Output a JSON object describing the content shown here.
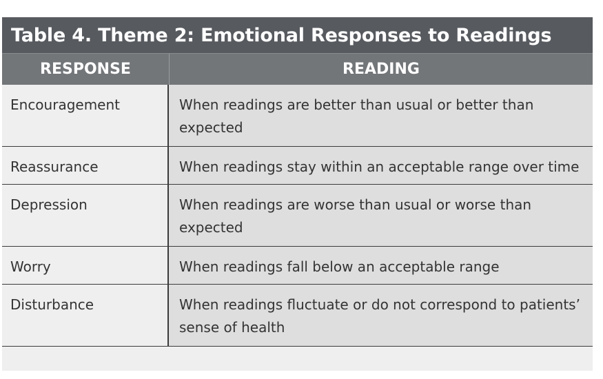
{
  "table": {
    "title": "Table 4. Theme 2: Emotional Responses to Readings",
    "headers": {
      "response": "RESPONSE",
      "reading": "READING"
    },
    "rows": [
      {
        "response": "Encouragement",
        "reading": "When readings are better than usual or better than expected"
      },
      {
        "response": "Reassurance",
        "reading": "When readings stay within an acceptable range over time"
      },
      {
        "response": "Depression",
        "reading": "When readings are worse than usual or worse than expected"
      },
      {
        "response": "Worry",
        "reading": "When readings fall below an acceptable range"
      },
      {
        "response": "Disturbance",
        "reading": "When readings fluctuate or do not correspond to patients’ sense of health"
      }
    ]
  },
  "colors": {
    "title_bar": "#575a5f",
    "header_row": "#737679",
    "response_cell": "#efefef",
    "reading_cell": "#dedede",
    "text": "#333333",
    "rule": "#3a3a3a"
  }
}
